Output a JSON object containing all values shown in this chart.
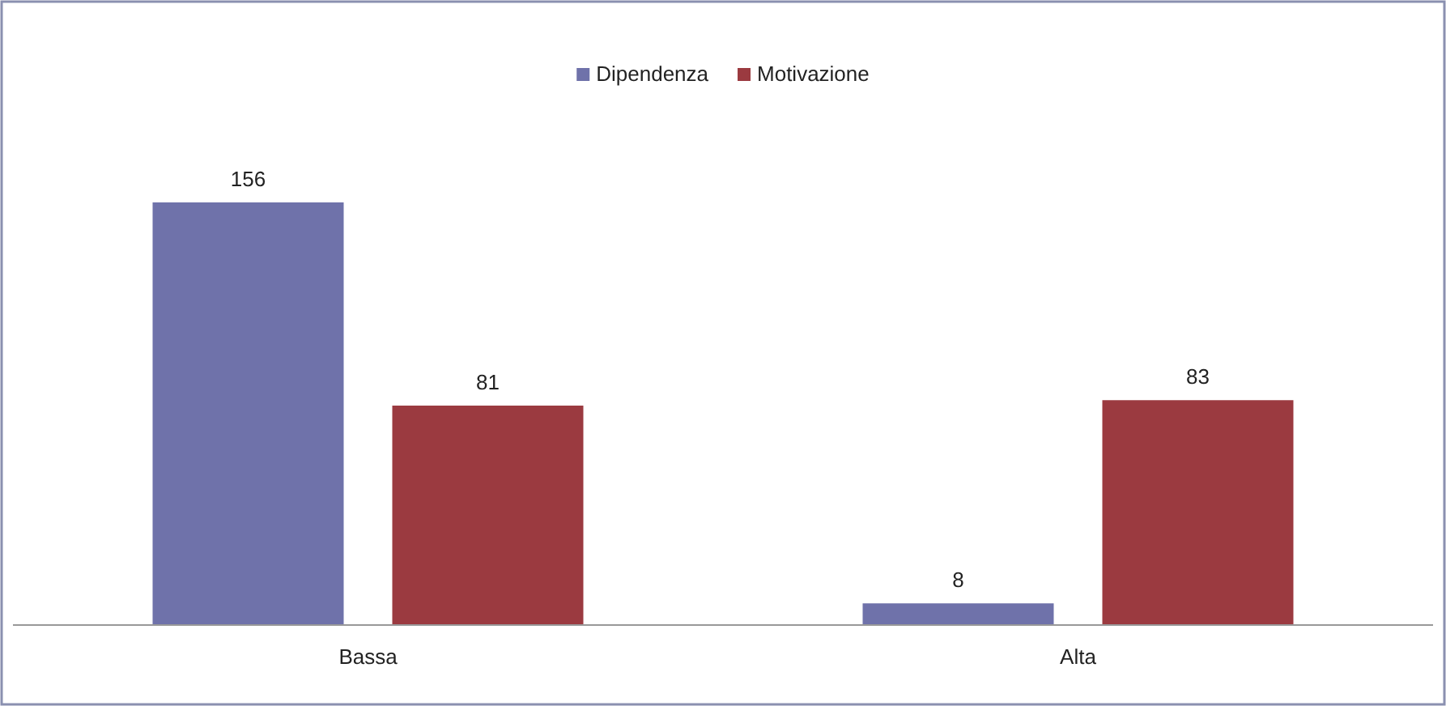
{
  "chart_data": {
    "type": "bar",
    "categories": [
      "Bassa",
      "Alta"
    ],
    "series": [
      {
        "name": "Dipendenza",
        "color": "#6f72aa",
        "values": [
          156,
          8
        ]
      },
      {
        "name": "Motivazione",
        "color": "#9b3a40",
        "values": [
          81,
          83
        ]
      }
    ],
    "data_labels": true,
    "legend": "top"
  }
}
